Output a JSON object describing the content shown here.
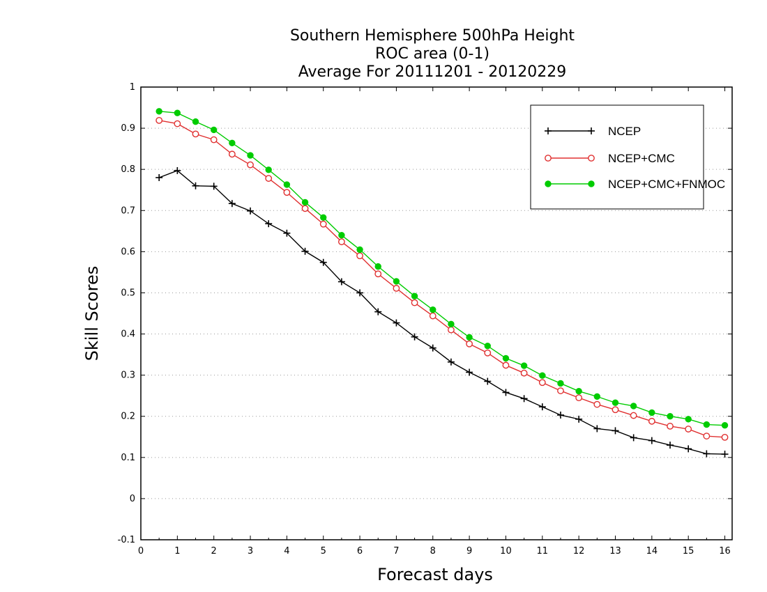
{
  "colors": {
    "ncep": "#000000",
    "ncep_cmc": "#e03030",
    "ncep_cmc_fnmoc": "#00cc00"
  },
  "chart_data": {
    "type": "line",
    "title_lines": [
      "Southern Hemisphere 500hPa Height",
      "ROC area (0-1)",
      "Average For 20111201 - 20120229"
    ],
    "xlabel": "Forecast days",
    "ylabel": "Skill Scores",
    "xlim": [
      0,
      16.2
    ],
    "ylim": [
      -0.1,
      1
    ],
    "x_ticks": [
      0,
      1,
      2,
      3,
      4,
      5,
      6,
      7,
      8,
      9,
      10,
      11,
      12,
      13,
      14,
      15,
      16
    ],
    "y_ticks": [
      -0.1,
      0,
      0.1,
      0.2,
      0.3,
      0.4,
      0.5,
      0.6,
      0.7,
      0.8,
      0.9,
      1
    ],
    "y_tick_labels": [
      "-0.1",
      "0",
      "0.1",
      "0.2",
      "0.3",
      "0.4",
      "0.5",
      "0.6",
      "0.7",
      "0.8",
      "0.9",
      "1"
    ],
    "grid": "y-dotted",
    "legend_position": "top-right",
    "x": [
      0.5,
      1,
      1.5,
      2,
      2.5,
      3,
      3.5,
      4,
      4.5,
      5,
      5.5,
      6,
      6.5,
      7,
      7.5,
      8,
      8.5,
      9,
      9.5,
      10,
      10.5,
      11,
      11.5,
      12,
      12.5,
      13,
      13.5,
      14,
      14.5,
      15,
      15.5,
      16
    ],
    "series": [
      {
        "name": "NCEP",
        "marker": "plus",
        "values": [
          0.78,
          0.797,
          0.76,
          0.759,
          0.717,
          0.699,
          0.668,
          0.645,
          0.601,
          0.574,
          0.527,
          0.5,
          0.454,
          0.427,
          0.393,
          0.366,
          0.332,
          0.307,
          0.285,
          0.258,
          0.243,
          0.223,
          0.203,
          0.193,
          0.17,
          0.165,
          0.148,
          0.141,
          0.13,
          0.121,
          0.109,
          0.108
        ]
      },
      {
        "name": "NCEP+CMC",
        "marker": "open-circle",
        "values": [
          0.919,
          0.911,
          0.886,
          0.872,
          0.837,
          0.811,
          0.778,
          0.744,
          0.705,
          0.667,
          0.624,
          0.59,
          0.546,
          0.511,
          0.476,
          0.444,
          0.41,
          0.376,
          0.354,
          0.324,
          0.305,
          0.282,
          0.262,
          0.245,
          0.229,
          0.216,
          0.202,
          0.188,
          0.176,
          0.169,
          0.152,
          0.149
        ]
      },
      {
        "name": "NCEP+CMC+FNMOC",
        "marker": "filled-circle",
        "values": [
          0.941,
          0.937,
          0.916,
          0.896,
          0.864,
          0.834,
          0.799,
          0.763,
          0.72,
          0.683,
          0.64,
          0.605,
          0.564,
          0.528,
          0.492,
          0.459,
          0.424,
          0.392,
          0.371,
          0.341,
          0.323,
          0.299,
          0.28,
          0.261,
          0.248,
          0.233,
          0.225,
          0.209,
          0.2,
          0.193,
          0.18,
          0.178
        ]
      }
    ]
  }
}
